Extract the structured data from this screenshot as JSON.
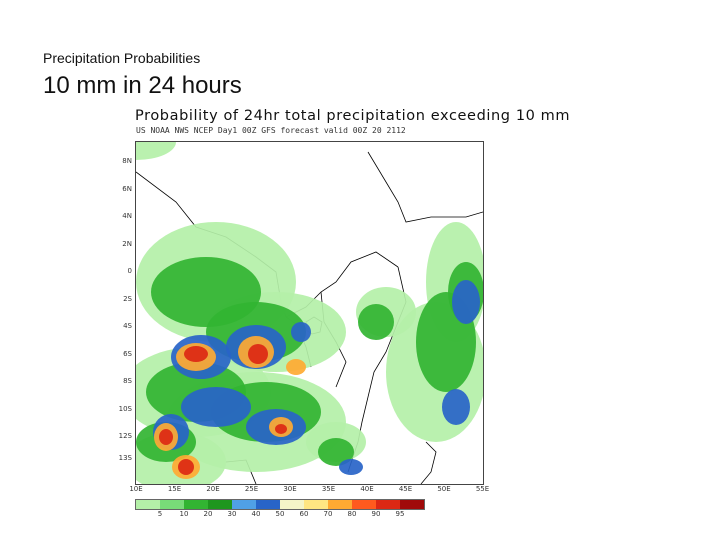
{
  "slide": {
    "kicker": "Precipitation Probabilities",
    "title": "10 mm in 24 hours"
  },
  "map": {
    "title": "Probability of 24hr total precipitation exceeding 10 mm",
    "subtitle": "US NOAA NWS NCEP Day1 00Z GFS forecast valid 00Z 20 2112",
    "lat_labels": [
      "8N",
      "6N",
      "4N",
      "2N",
      "0",
      "2S",
      "4S",
      "6S",
      "8S",
      "10S",
      "12S",
      "13S"
    ],
    "lon_labels": [
      "10E",
      "15E",
      "20E",
      "25E",
      "30E",
      "35E",
      "40E",
      "45E",
      "50E",
      "55E"
    ],
    "palette": {
      "land_bg": "#ffffff",
      "boundary": "#000000"
    }
  },
  "legend": {
    "swatches": [
      "#b4f0a8",
      "#78dc78",
      "#32b432",
      "#1e961e",
      "#50a0e6",
      "#2864c8",
      "#f5f5c8",
      "#ffe682",
      "#ffaa32",
      "#ff5a1e",
      "#dc2814",
      "#a00a0a"
    ],
    "ticks": [
      "5",
      "10",
      "20",
      "30",
      "40",
      "50",
      "60",
      "70",
      "80",
      "90",
      "95"
    ]
  }
}
